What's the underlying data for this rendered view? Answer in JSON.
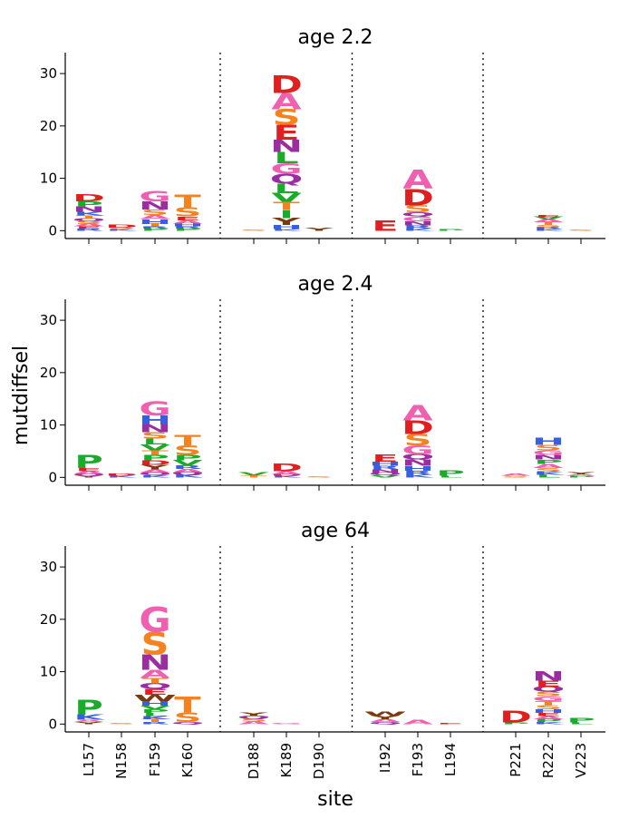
{
  "chart_data": {
    "type": "logo",
    "xlabel": "site",
    "ylabel": "mutdiffsel",
    "ylim": [
      -1.5,
      34
    ],
    "yticks": [
      0,
      10,
      20,
      30
    ],
    "sites": [
      "L157",
      "N158",
      "F159",
      "K160",
      "D188",
      "K189",
      "D190",
      "I192",
      "F193",
      "L194",
      "P221",
      "R222",
      "V223"
    ],
    "site_groups": [
      [
        0,
        1,
        2,
        3
      ],
      [
        4,
        5,
        6
      ],
      [
        7,
        8,
        9
      ],
      [
        10,
        11,
        12
      ]
    ],
    "colors": {
      "D": "#e02020",
      "E": "#e02020",
      "A": "#f060b0",
      "G": "#f060b0",
      "S": "#f5821f",
      "T": "#f5821f",
      "N": "#9a2ea0",
      "Q": "#9a2ea0",
      "H": "#3a5ee0",
      "K": "#3a5ee0",
      "R": "#3a5ee0",
      "L": "#1aab2b",
      "V": "#1aab2b",
      "I": "#1aab2b",
      "P": "#1aab2b",
      "M": "#1aab2b",
      "F": "#1aab2b",
      "Y": "#7a3a10",
      "W": "#7a3a10",
      "C": "#d8b000"
    },
    "panels": [
      {
        "title": "age 2.2",
        "stacks": [
          [
            [
              "R",
              0.4
            ],
            [
              "E",
              0.4
            ],
            [
              "A",
              0.5
            ],
            [
              "S",
              0.5
            ],
            [
              "Q",
              0.5
            ],
            [
              "T",
              0.6
            ],
            [
              "K",
              0.7
            ],
            [
              "N",
              1.0
            ],
            [
              "P",
              1.0
            ],
            [
              "D",
              1.3
            ]
          ],
          [
            [
              "K",
              0.3
            ],
            [
              "S",
              0.3
            ],
            [
              "D",
              0.5
            ]
          ],
          [
            [
              "P",
              0.4
            ],
            [
              "R",
              0.4
            ],
            [
              "T",
              0.5
            ],
            [
              "H",
              0.9
            ],
            [
              "A",
              0.8
            ],
            [
              "S",
              1.0
            ],
            [
              "N",
              1.6
            ],
            [
              "G",
              2.0
            ]
          ],
          [
            [
              "P",
              0.4
            ],
            [
              "R",
              0.4
            ],
            [
              "H",
              0.6
            ],
            [
              "A",
              0.6
            ],
            [
              "E",
              0.7
            ],
            [
              "S",
              1.7
            ],
            [
              "T",
              2.5
            ]
          ],
          [
            [
              "S",
              0.2
            ]
          ],
          [
            [
              "K",
              0.3
            ],
            [
              "H",
              0.8
            ],
            [
              "Y",
              1.3
            ],
            [
              "I",
              1.6
            ],
            [
              "T",
              1.5
            ],
            [
              "V",
              1.7
            ],
            [
              "L",
              1.8
            ],
            [
              "Q",
              1.9
            ],
            [
              "G",
              2.0
            ],
            [
              "L",
              2.1
            ],
            [
              "N",
              2.4
            ],
            [
              "E",
              2.8
            ],
            [
              "S",
              3.0
            ],
            [
              "A",
              3.1
            ],
            [
              "D",
              3.4
            ]
          ],
          [
            [
              "Y",
              0.5
            ]
          ],
          [
            [
              "E",
              2.0
            ]
          ],
          [
            [
              "K",
              0.4
            ],
            [
              "R",
              0.6
            ],
            [
              "N",
              0.8
            ],
            [
              "G",
              0.9
            ],
            [
              "Q",
              0.8
            ],
            [
              "S",
              1.3
            ],
            [
              "D",
              3.2
            ],
            [
              "A",
              3.6
            ]
          ],
          [
            [
              "P",
              0.3
            ]
          ],
          [],
          [
            [
              "K",
              0.3
            ],
            [
              "R",
              0.4
            ],
            [
              "S",
              0.4
            ],
            [
              "T",
              0.5
            ],
            [
              "A",
              0.5
            ],
            [
              "V",
              0.5
            ],
            [
              "E",
              0.4
            ]
          ],
          [
            [
              "S",
              0.2
            ]
          ]
        ]
      },
      {
        "title": "age 2.4",
        "stacks": [
          [
            [
              "Y",
              0.3
            ],
            [
              "Q",
              0.4
            ],
            [
              "A",
              0.5
            ],
            [
              "E",
              0.6
            ],
            [
              "P",
              2.5
            ]
          ],
          [
            [
              "K",
              0.3
            ],
            [
              "D",
              0.4
            ]
          ],
          [
            [
              "K",
              0.4
            ],
            [
              "Q",
              0.5
            ],
            [
              "A",
              0.6
            ],
            [
              "Y",
              0.9
            ],
            [
              "D",
              0.9
            ],
            [
              "P",
              1.0
            ],
            [
              "T",
              0.9
            ],
            [
              "V",
              1.1
            ],
            [
              "L",
              1.1
            ],
            [
              "S",
              1.2
            ],
            [
              "N",
              1.5
            ],
            [
              "H",
              1.7
            ],
            [
              "G",
              2.7
            ]
          ],
          [
            [
              "K",
              0.5
            ],
            [
              "Q",
              0.5
            ],
            [
              "A",
              0.6
            ],
            [
              "R",
              0.7
            ],
            [
              "V",
              1.0
            ],
            [
              "P",
              1.0
            ],
            [
              "S",
              1.8
            ],
            [
              "T",
              2.0
            ]
          ],
          [
            [
              "T",
              0.4
            ],
            [
              "V",
              0.6
            ]
          ],
          [
            [
              "K",
              0.3
            ],
            [
              "D",
              0.3
            ],
            [
              "A",
              0.6
            ],
            [
              "D",
              1.5
            ]
          ],
          [
            [
              "S",
              0.2
            ]
          ],
          [
            [
              "V",
              0.4
            ],
            [
              "Q",
              0.5
            ],
            [
              "N",
              0.6
            ],
            [
              "R",
              0.7
            ],
            [
              "H",
              0.8
            ],
            [
              "E",
              1.3
            ]
          ],
          [
            [
              "K",
              0.5
            ],
            [
              "R",
              0.8
            ],
            [
              "H",
              0.9
            ],
            [
              "N",
              1.2
            ],
            [
              "Q",
              1.0
            ],
            [
              "G",
              1.7
            ],
            [
              "S",
              2.2
            ],
            [
              "D",
              2.6
            ],
            [
              "A",
              2.9
            ]
          ],
          [
            [
              "L",
              0.3
            ],
            [
              "P",
              1.0
            ]
          ],
          [
            [
              "S",
              0.3
            ],
            [
              "A",
              0.4
            ]
          ],
          [
            [
              "L",
              0.5
            ],
            [
              "K",
              0.6
            ],
            [
              "S",
              0.7
            ],
            [
              "A",
              0.8
            ],
            [
              "P",
              0.8
            ],
            [
              "N",
              0.9
            ],
            [
              "G",
              0.9
            ],
            [
              "S",
              1.0
            ],
            [
              "H",
              1.3
            ]
          ],
          [
            [
              "P",
              0.3
            ],
            [
              "A",
              0.3
            ],
            [
              "Y",
              0.4
            ]
          ]
        ]
      },
      {
        "title": "age 64",
        "stacks": [
          [
            [
              "Y",
              0.4
            ],
            [
              "A",
              0.4
            ],
            [
              "K",
              1.0
            ],
            [
              "P",
              2.8
            ]
          ],
          [
            [
              "S",
              0.2
            ]
          ],
          [
            [
              "R",
              0.4
            ],
            [
              "T",
              0.5
            ],
            [
              "K",
              0.6
            ],
            [
              "L",
              0.6
            ],
            [
              "P",
              0.7
            ],
            [
              "V",
              0.7
            ],
            [
              "H",
              0.9
            ],
            [
              "W",
              1.2
            ],
            [
              "E",
              1.1
            ],
            [
              "Q",
              1.1
            ],
            [
              "T",
              1.0
            ],
            [
              "A",
              1.6
            ],
            [
              "N",
              2.9
            ],
            [
              "S",
              4.3
            ],
            [
              "G",
              4.7
            ]
          ],
          [
            [
              "Q",
              0.4
            ],
            [
              "S",
              1.8
            ],
            [
              "T",
              3.0
            ]
          ],
          [
            [
              "A",
              0.5
            ],
            [
              "S",
              0.5
            ],
            [
              "Q",
              0.6
            ],
            [
              "Y",
              0.6
            ]
          ],
          [
            [
              "G",
              0.2
            ]
          ],
          [],
          [
            [
              "Q",
              0.4
            ],
            [
              "A",
              0.5
            ],
            [
              "Y",
              0.7
            ],
            [
              "W",
              0.8
            ]
          ],
          [
            [
              "A",
              0.9
            ]
          ],
          [
            [
              "E",
              0.2
            ]
          ],
          [
            [
              "P",
              0.3
            ],
            [
              "D",
              2.2
            ]
          ],
          [
            [
              "K",
              0.4
            ],
            [
              "P",
              0.5
            ],
            [
              "A",
              0.6
            ],
            [
              "E",
              0.6
            ],
            [
              "H",
              0.7
            ],
            [
              "S",
              0.8
            ],
            [
              "T",
              0.8
            ],
            [
              "G",
              0.9
            ],
            [
              "S",
              0.9
            ],
            [
              "Q",
              1.0
            ],
            [
              "E",
              1.1
            ],
            [
              "N",
              1.8
            ]
          ],
          [
            [
              "L",
              0.3
            ],
            [
              "P",
              0.9
            ]
          ]
        ]
      }
    ]
  }
}
